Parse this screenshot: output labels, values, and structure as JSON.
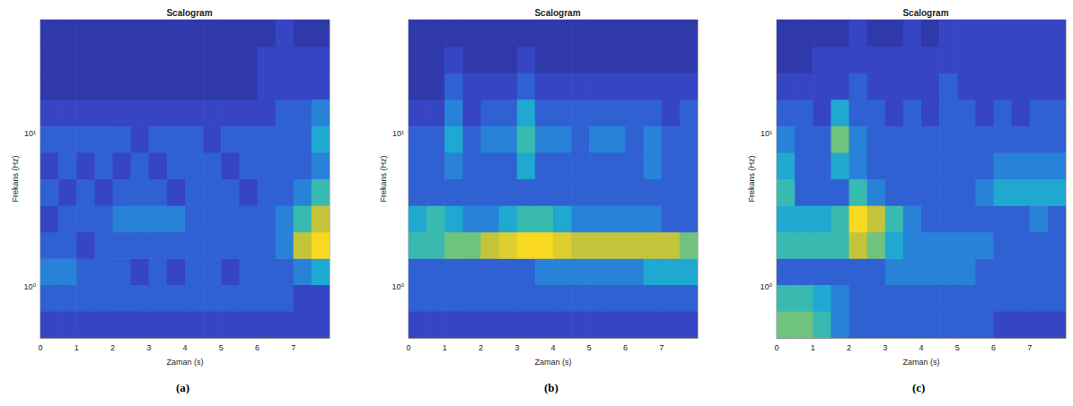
{
  "chart_data": [
    {
      "type": "heatmap",
      "title": "Scalogram",
      "panel_label": "(a)",
      "x_label": "Zaman (s)",
      "y_label": "Frekans (Hz)",
      "log": "y",
      "grid": false,
      "xlim": [
        0,
        8
      ],
      "xticks": [
        0,
        1,
        2,
        3,
        4,
        5,
        6,
        7
      ],
      "ylim": [
        0.46,
        56
      ],
      "yticks": [
        {
          "value": 1,
          "label": "10⁰"
        },
        {
          "value": 10,
          "label": "10¹"
        }
      ],
      "x_edges": [
        0,
        0.5,
        1,
        1.5,
        2,
        2.5,
        3,
        3.5,
        4,
        4.5,
        5,
        5.5,
        6,
        6.5,
        7,
        7.5,
        8
      ],
      "y_edges": [
        0.46,
        0.69,
        1.03,
        1.53,
        2.28,
        3.4,
        5.08,
        7.57,
        11.3,
        16.9,
        25.2,
        37.5,
        56
      ],
      "color_range": [
        0,
        10
      ],
      "cells": [
        [
          2,
          2,
          2,
          2,
          2,
          2,
          2,
          2,
          2,
          2,
          2,
          2,
          2,
          2,
          2,
          2
        ],
        [
          3,
          3,
          3,
          3,
          3,
          3,
          3,
          3,
          3,
          3,
          3,
          3,
          3,
          3,
          2,
          2
        ],
        [
          4,
          4,
          3,
          3,
          3,
          2,
          3,
          2,
          3,
          3,
          2,
          3,
          3,
          3,
          4,
          5
        ],
        [
          3,
          3,
          2,
          3,
          3,
          3,
          3,
          3,
          3,
          3,
          3,
          3,
          3,
          4,
          8,
          10
        ],
        [
          2,
          3,
          3,
          3,
          4,
          4,
          4,
          4,
          3,
          3,
          3,
          3,
          3,
          4,
          6,
          8
        ],
        [
          3,
          2,
          3,
          2,
          3,
          3,
          3,
          2,
          3,
          3,
          3,
          2,
          3,
          3,
          4,
          6
        ],
        [
          2,
          3,
          2,
          3,
          2,
          3,
          2,
          3,
          3,
          3,
          2,
          3,
          3,
          3,
          3,
          4
        ],
        [
          3,
          3,
          3,
          3,
          3,
          2,
          3,
          3,
          3,
          2,
          3,
          3,
          3,
          3,
          3,
          5
        ],
        [
          2,
          2,
          2,
          2,
          2,
          2,
          2,
          2,
          2,
          2,
          2,
          2,
          2,
          3,
          3,
          4
        ],
        [
          1,
          1,
          1,
          1,
          1,
          1,
          1,
          1,
          1,
          1,
          1,
          1,
          2,
          2,
          2,
          2
        ],
        [
          1,
          1,
          1,
          1,
          1,
          1,
          1,
          1,
          1,
          1,
          1,
          1,
          2,
          2,
          2,
          2
        ],
        [
          1,
          1,
          1,
          1,
          1,
          1,
          1,
          1,
          1,
          1,
          1,
          1,
          1,
          2,
          1,
          1
        ]
      ]
    },
    {
      "type": "heatmap",
      "title": "Scalogram",
      "panel_label": "(b)",
      "x_label": "Zaman (s)",
      "y_label": "Frekans (Hz)",
      "log": "y",
      "grid": false,
      "xlim": [
        0,
        8
      ],
      "xticks": [
        0,
        1,
        2,
        3,
        4,
        5,
        6,
        7
      ],
      "ylim": [
        0.46,
        56
      ],
      "yticks": [
        {
          "value": 1,
          "label": "10⁰"
        },
        {
          "value": 10,
          "label": "10¹"
        }
      ],
      "x_edges": [
        0,
        0.5,
        1,
        1.5,
        2,
        2.5,
        3,
        3.5,
        4,
        4.5,
        5,
        5.5,
        6,
        6.5,
        7,
        7.5,
        8
      ],
      "y_edges": [
        0.46,
        0.69,
        1.03,
        1.53,
        2.28,
        3.4,
        5.08,
        7.57,
        11.3,
        16.9,
        25.2,
        37.5,
        56
      ],
      "color_range": [
        0,
        10
      ],
      "cells": [
        [
          2,
          2,
          2,
          2,
          2,
          2,
          2,
          2,
          2,
          2,
          2,
          2,
          2,
          2,
          2,
          2
        ],
        [
          3,
          3,
          3,
          3,
          3,
          3,
          3,
          3,
          3,
          3,
          3,
          3,
          3,
          3,
          3,
          3
        ],
        [
          3,
          3,
          3,
          3,
          3,
          3,
          3,
          4,
          4,
          4,
          4,
          4,
          4,
          5,
          5,
          5
        ],
        [
          6,
          6,
          7,
          7,
          8,
          9,
          10,
          10,
          9,
          8,
          8,
          8,
          8,
          8,
          8,
          7
        ],
        [
          5,
          6,
          5,
          4,
          4,
          5,
          6,
          6,
          5,
          4,
          4,
          4,
          4,
          4,
          3,
          3
        ],
        [
          3,
          3,
          3,
          3,
          3,
          3,
          3,
          3,
          3,
          3,
          3,
          3,
          3,
          3,
          3,
          3
        ],
        [
          3,
          3,
          4,
          3,
          3,
          3,
          5,
          3,
          3,
          3,
          3,
          3,
          3,
          4,
          3,
          3
        ],
        [
          3,
          3,
          5,
          3,
          4,
          4,
          6,
          4,
          4,
          3,
          4,
          4,
          3,
          4,
          3,
          3
        ],
        [
          2,
          2,
          4,
          2,
          3,
          3,
          5,
          3,
          3,
          3,
          3,
          3,
          3,
          3,
          2,
          3
        ],
        [
          1,
          1,
          3,
          2,
          2,
          2,
          3,
          2,
          2,
          2,
          2,
          2,
          2,
          2,
          2,
          2
        ],
        [
          1,
          1,
          2,
          1,
          1,
          1,
          2,
          1,
          1,
          1,
          1,
          1,
          1,
          1,
          1,
          1
        ],
        [
          1,
          1,
          1,
          1,
          1,
          1,
          1,
          1,
          1,
          1,
          1,
          1,
          1,
          1,
          1,
          1
        ]
      ]
    },
    {
      "type": "heatmap",
      "title": "Scalogram",
      "panel_label": "(c)",
      "x_label": "Zaman (s)",
      "y_label": "Frekans (Hz)",
      "log": "y",
      "grid": false,
      "xlim": [
        0,
        8
      ],
      "xticks": [
        0,
        1,
        2,
        3,
        4,
        5,
        6,
        7
      ],
      "ylim": [
        0.46,
        56
      ],
      "yticks": [
        {
          "value": 1,
          "label": "10⁰"
        },
        {
          "value": 10,
          "label": "10¹"
        }
      ],
      "x_edges": [
        0,
        0.5,
        1,
        1.5,
        2,
        2.5,
        3,
        3.5,
        4,
        4.5,
        5,
        5.5,
        6,
        6.5,
        7,
        7.5,
        8
      ],
      "y_edges": [
        0.46,
        0.69,
        1.03,
        1.53,
        2.28,
        3.4,
        5.08,
        7.57,
        11.3,
        16.9,
        25.2,
        37.5,
        56
      ],
      "color_range": [
        0,
        10
      ],
      "cells": [
        [
          7,
          7,
          6,
          4,
          3,
          3,
          3,
          3,
          3,
          3,
          3,
          3,
          2,
          2,
          2,
          2
        ],
        [
          6,
          6,
          5,
          4,
          3,
          3,
          3,
          3,
          3,
          3,
          3,
          3,
          3,
          3,
          3,
          3
        ],
        [
          3,
          3,
          3,
          3,
          3,
          3,
          4,
          4,
          4,
          4,
          4,
          3,
          3,
          3,
          3,
          3
        ],
        [
          6,
          6,
          6,
          6,
          8,
          7,
          5,
          4,
          4,
          4,
          4,
          4,
          3,
          3,
          3,
          3
        ],
        [
          5,
          5,
          5,
          6,
          10,
          8,
          6,
          4,
          3,
          3,
          3,
          3,
          3,
          3,
          4,
          3
        ],
        [
          6,
          3,
          3,
          3,
          6,
          4,
          3,
          3,
          3,
          3,
          3,
          4,
          5,
          5,
          5,
          5
        ],
        [
          5,
          3,
          3,
          5,
          4,
          3,
          3,
          3,
          3,
          3,
          3,
          3,
          4,
          4,
          4,
          4
        ],
        [
          4,
          3,
          3,
          7,
          4,
          3,
          3,
          3,
          3,
          3,
          3,
          3,
          3,
          3,
          3,
          3
        ],
        [
          3,
          3,
          2,
          5,
          3,
          3,
          2,
          3,
          2,
          3,
          3,
          2,
          3,
          2,
          3,
          3
        ],
        [
          2,
          2,
          2,
          2,
          3,
          2,
          2,
          2,
          2,
          3,
          2,
          2,
          2,
          2,
          2,
          2
        ],
        [
          1,
          1,
          2,
          2,
          2,
          2,
          2,
          2,
          2,
          2,
          2,
          2,
          2,
          2,
          2,
          2
        ],
        [
          1,
          1,
          1,
          1,
          2,
          1,
          1,
          2,
          1,
          2,
          2,
          2,
          2,
          2,
          2,
          2
        ]
      ]
    }
  ]
}
